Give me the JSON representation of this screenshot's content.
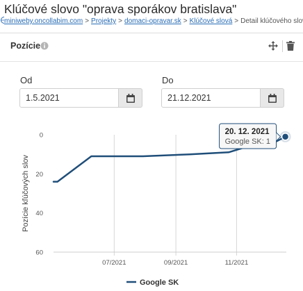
{
  "page": {
    "title": "Klúčové slovo \"oprava sporákov bratislava\""
  },
  "breadcrumb": {
    "items": [
      {
        "label": "miniweby.oncollabim.com",
        "link": true
      },
      {
        "label": "Projekty",
        "link": true
      },
      {
        "label": "domaci-opravar.sk",
        "link": true
      },
      {
        "label": "Klúčové slová",
        "link": true
      },
      {
        "label": "Detail klúčového slova",
        "link": false
      }
    ],
    "separator": ">"
  },
  "panel": {
    "title": "Pozície",
    "icons": [
      "info-icon",
      "move-icon",
      "trash-icon"
    ]
  },
  "filters": {
    "from_label": "Od",
    "from_value": "1.5.2021",
    "to_label": "Do",
    "to_value": "21.12.2021",
    "calendar_icon": "calendar-icon"
  },
  "chart_data": {
    "type": "line",
    "title": "",
    "xlabel": "",
    "ylabel": "Pozície kľúčových slov",
    "y_reversed": true,
    "ylim": [
      60,
      0
    ],
    "yticks": [
      0,
      20,
      40,
      60
    ],
    "xticks": [
      "07/2021",
      "09/2021",
      "11/2021"
    ],
    "xlim": [
      "2021-05-01",
      "2021-12-21"
    ],
    "grid": "vertical",
    "legend": "bottom",
    "series": [
      {
        "name": "Google SK",
        "color": "#1f4e79",
        "points": [
          {
            "x": "2021-05-01",
            "y": 24
          },
          {
            "x": "2021-05-05",
            "y": 24
          },
          {
            "x": "2021-06-08",
            "y": 11
          },
          {
            "x": "2021-07-30",
            "y": 11
          },
          {
            "x": "2021-09-15",
            "y": 10
          },
          {
            "x": "2021-10-24",
            "y": 9
          },
          {
            "x": "2021-11-25",
            "y": 4
          },
          {
            "x": "2021-12-05",
            "y": 5
          },
          {
            "x": "2021-12-20",
            "y": 1
          }
        ]
      }
    ],
    "tooltip": {
      "title": "20. 12. 2021",
      "text": "Google SK: 1"
    }
  }
}
